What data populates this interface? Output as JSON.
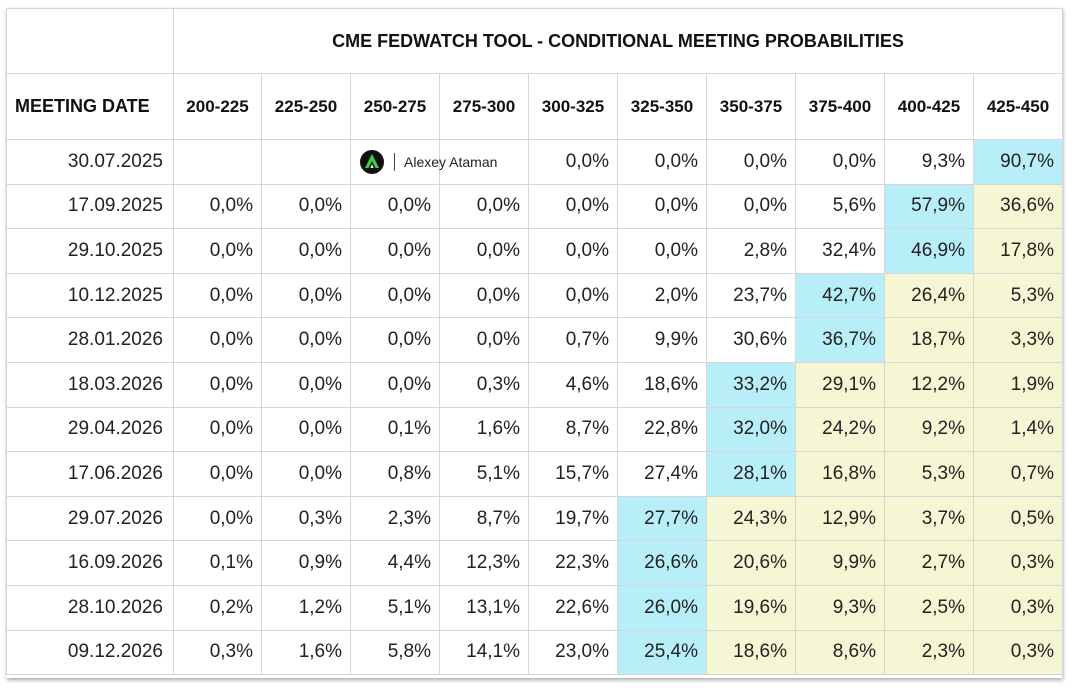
{
  "chart_data": {
    "type": "table",
    "title": "CME FEDWATCH TOOL - CONDITIONAL MEETING PROBABILITIES",
    "row_header": "MEETING DATE",
    "columns": [
      "200-225",
      "225-250",
      "250-275",
      "275-300",
      "300-325",
      "325-350",
      "350-375",
      "375-400",
      "400-425",
      "425-450"
    ],
    "rows": [
      {
        "date": "30.07.2025",
        "values": [
          "",
          "",
          "",
          "",
          "0,0%",
          "0,0%",
          "0,0%",
          "0,0%",
          "9,3%",
          "90,7%"
        ]
      },
      {
        "date": "17.09.2025",
        "values": [
          "0,0%",
          "0,0%",
          "0,0%",
          "0,0%",
          "0,0%",
          "0,0%",
          "0,0%",
          "5,6%",
          "57,9%",
          "36,6%"
        ]
      },
      {
        "date": "29.10.2025",
        "values": [
          "0,0%",
          "0,0%",
          "0,0%",
          "0,0%",
          "0,0%",
          "0,0%",
          "2,8%",
          "32,4%",
          "46,9%",
          "17,8%"
        ]
      },
      {
        "date": "10.12.2025",
        "values": [
          "0,0%",
          "0,0%",
          "0,0%",
          "0,0%",
          "0,0%",
          "2,0%",
          "23,7%",
          "42,7%",
          "26,4%",
          "5,3%"
        ]
      },
      {
        "date": "28.01.2026",
        "values": [
          "0,0%",
          "0,0%",
          "0,0%",
          "0,0%",
          "0,7%",
          "9,9%",
          "30,6%",
          "36,7%",
          "18,7%",
          "3,3%"
        ]
      },
      {
        "date": "18.03.2026",
        "values": [
          "0,0%",
          "0,0%",
          "0,0%",
          "0,3%",
          "4,6%",
          "18,6%",
          "33,2%",
          "29,1%",
          "12,2%",
          "1,9%"
        ]
      },
      {
        "date": "29.04.2026",
        "values": [
          "0,0%",
          "0,0%",
          "0,1%",
          "1,6%",
          "8,7%",
          "22,8%",
          "32,0%",
          "24,2%",
          "9,2%",
          "1,4%"
        ]
      },
      {
        "date": "17.06.2026",
        "values": [
          "0,0%",
          "0,0%",
          "0,8%",
          "5,1%",
          "15,7%",
          "27,4%",
          "28,1%",
          "16,8%",
          "5,3%",
          "0,7%"
        ]
      },
      {
        "date": "29.07.2026",
        "values": [
          "0,0%",
          "0,3%",
          "2,3%",
          "8,7%",
          "19,7%",
          "27,7%",
          "24,3%",
          "12,9%",
          "3,7%",
          "0,5%"
        ]
      },
      {
        "date": "16.09.2026",
        "values": [
          "0,1%",
          "0,9%",
          "4,4%",
          "12,3%",
          "22,3%",
          "26,6%",
          "20,6%",
          "9,9%",
          "2,7%",
          "0,3%"
        ]
      },
      {
        "date": "28.10.2026",
        "values": [
          "0,2%",
          "1,2%",
          "5,1%",
          "13,1%",
          "22,6%",
          "26,0%",
          "19,6%",
          "9,3%",
          "2,5%",
          "0,3%"
        ]
      },
      {
        "date": "09.12.2026",
        "values": [
          "0,3%",
          "1,6%",
          "5,8%",
          "14,1%",
          "23,0%",
          "25,4%",
          "18,6%",
          "8,6%",
          "2,3%",
          "0,3%"
        ]
      }
    ],
    "highlight_blue_cols": [
      9,
      8,
      8,
      7,
      7,
      6,
      6,
      6,
      5,
      5,
      5,
      5
    ],
    "colors": {
      "blue": "#b8eef8",
      "yellow": "#f5f7d4"
    }
  },
  "watermark": {
    "text": "Alexey Ataman",
    "icon": "triangle-logo-icon"
  }
}
